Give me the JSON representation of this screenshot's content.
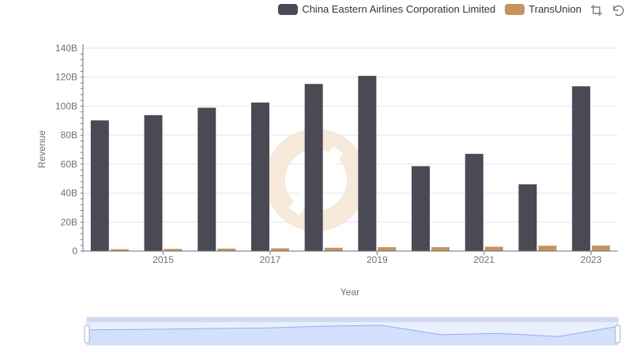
{
  "chart_data": {
    "type": "bar",
    "title": "",
    "xlabel": "Year",
    "ylabel": "Revenue",
    "ylim": [
      0,
      140
    ],
    "y_unit": "B",
    "categories": [
      "2014",
      "2015",
      "2016",
      "2017",
      "2018",
      "2019",
      "2020",
      "2021",
      "2022",
      "2023"
    ],
    "x_tick_labels": [
      "2015",
      "2017",
      "2019",
      "2021",
      "2023"
    ],
    "y_tick_labels": [
      "0",
      "20B",
      "40B",
      "60B",
      "80B",
      "100B",
      "120B",
      "140B"
    ],
    "series": [
      {
        "name": "China Eastern Airlines Corporation Limited",
        "color": "#4a4a55",
        "values": [
          90.2,
          93.8,
          98.9,
          102.5,
          115.3,
          120.9,
          58.6,
          67.1,
          46.1,
          113.7
        ]
      },
      {
        "name": "TransUnion",
        "color": "#c4935e",
        "values": [
          1.3,
          1.5,
          1.7,
          1.9,
          2.3,
          2.7,
          2.7,
          3.0,
          3.7,
          3.8
        ]
      }
    ],
    "legend_position": "top-right",
    "grid": true
  },
  "toolbox": {
    "zoom_icon": "zoom-select-icon",
    "restore_icon": "restore-icon"
  },
  "datazoom": {
    "range_start": 0,
    "range_end": 1
  }
}
